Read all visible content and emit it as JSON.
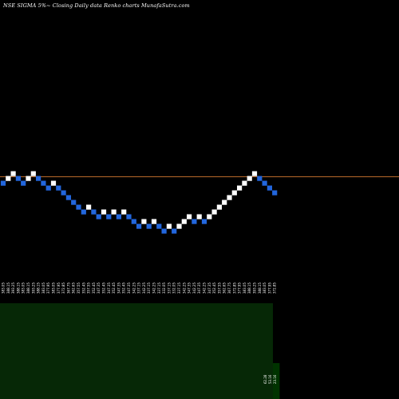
{
  "chart_data": {
    "type": "renko",
    "title": "NSE SIGMA 5%~  Closing Daily data  Renko  charts MunafaSutra.com",
    "reference_price": 389.95,
    "brick_sequence": [
      "blue",
      "white",
      "white",
      "blue",
      "blue",
      "white",
      "white",
      "blue",
      "blue",
      "blue",
      "white",
      "blue",
      "blue",
      "blue",
      "blue",
      "blue",
      "blue",
      "white",
      "blue",
      "blue",
      "white",
      "blue",
      "white",
      "blue",
      "white",
      "blue",
      "blue",
      "blue",
      "white",
      "blue",
      "white",
      "blue",
      "blue",
      "white",
      "blue",
      "white",
      "white",
      "white",
      "blue",
      "white",
      "blue",
      "white",
      "white",
      "white",
      "white",
      "white",
      "white",
      "white",
      "white",
      "white",
      "white",
      "blue",
      "blue",
      "blue",
      "blue"
    ],
    "x_tick_labels": [
      "383.05",
      "388.15",
      "393.25",
      "388.15",
      "383.05",
      "388.15",
      "393.25",
      "388.15",
      "383.05",
      "377.95",
      "383.05",
      "377.95",
      "372.85",
      "367.75",
      "362.65",
      "357.55",
      "352.45",
      "357.55",
      "352.45",
      "347.35",
      "352.45",
      "347.35",
      "352.45",
      "347.35",
      "352.45",
      "347.35",
      "342.25",
      "337.15",
      "342.25",
      "337.15",
      "342.25",
      "337.15",
      "332.05",
      "337.15",
      "332.05",
      "337.15",
      "342.25",
      "347.35",
      "342.25",
      "347.35",
      "342.25",
      "347.35",
      "352.45",
      "357.55",
      "362.65",
      "367.75",
      "372.85",
      "377.95",
      "383.05",
      "388.15",
      "393.25",
      "388.15",
      "383.05",
      "377.95",
      "372.85"
    ],
    "volume_last_labels": [
      "62.28",
      "53.16",
      "23.16"
    ],
    "colors": {
      "background": "#000000",
      "up_brick": "#ffffff",
      "down_brick": "#2266dd",
      "reference_line": "#b86a2a",
      "volume_area": "#062806",
      "volume_bar": "#003300",
      "label_text": "#ffffff"
    }
  }
}
